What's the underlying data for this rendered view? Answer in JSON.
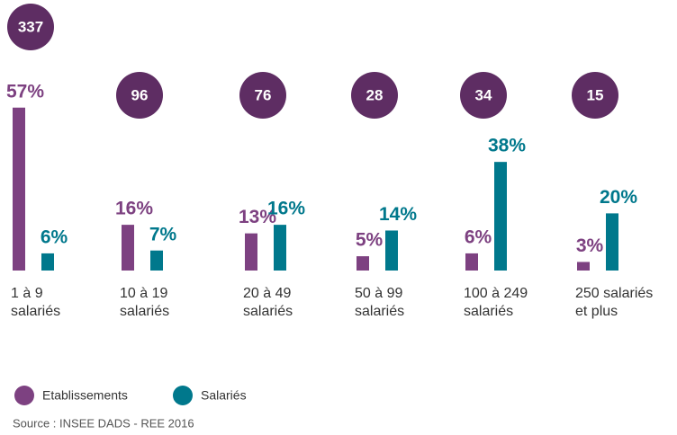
{
  "chart_data": {
    "type": "bar",
    "categories": [
      "1 à 9\nsalariés",
      "10 à 19\nsalariés",
      "20 à 49\nsalariés",
      "50 à 99\nsalariés",
      "100 à 249\nsalariés",
      "250 salariés\net plus"
    ],
    "counts": [
      337,
      96,
      76,
      28,
      34,
      15
    ],
    "counts_color": "#5e2d63",
    "series": [
      {
        "name": "Etablissements",
        "color": "#7d4181",
        "values": [
          57,
          16,
          13,
          5,
          6,
          3
        ],
        "value_labels": [
          "57%",
          "16%",
          "13%",
          "5%",
          "6%",
          "3%"
        ]
      },
      {
        "name": "Salariés",
        "color": "#00788c",
        "values": [
          6,
          7,
          16,
          14,
          38,
          20
        ],
        "value_labels": [
          "6%",
          "7%",
          "16%",
          "14%",
          "38%",
          "20%"
        ]
      }
    ],
    "source": "Source : INSEE DADS - REE 2016"
  }
}
